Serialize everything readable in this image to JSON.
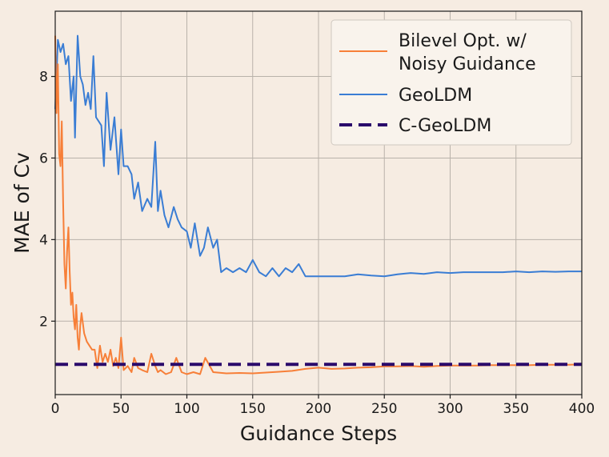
{
  "chart_data": {
    "type": "line",
    "title": "",
    "xlabel": "Guidance Steps",
    "ylabel": "MAE of Cv",
    "xlim": [
      0,
      400
    ],
    "ylim": [
      0.2,
      9.6
    ],
    "xticks": [
      0,
      50,
      100,
      150,
      200,
      250,
      300,
      350,
      400
    ],
    "yticks": [
      2,
      4,
      6,
      8
    ],
    "grid": true,
    "legend_position": "top-right",
    "colors": {
      "background": "#f6ece2",
      "plot_area": "#f6ece2",
      "grid": "#b9b2aa"
    },
    "series": [
      {
        "name": "Bilevel Opt. w/ Noisy Guidance",
        "legend_lines": [
          "Bilevel Opt. w/",
          "Noisy Guidance"
        ],
        "color": "#f77f38",
        "style": "solid",
        "x": [
          0,
          1,
          2,
          3,
          4,
          5,
          6,
          7,
          8,
          9,
          10,
          11,
          12,
          13,
          14,
          15,
          16,
          17,
          18,
          19,
          20,
          22,
          24,
          26,
          28,
          30,
          32,
          34,
          36,
          38,
          40,
          42,
          44,
          46,
          48,
          50,
          52,
          55,
          58,
          60,
          63,
          66,
          70,
          73,
          76,
          78,
          80,
          84,
          88,
          92,
          96,
          100,
          105,
          110,
          114,
          120,
          130,
          140,
          150,
          160,
          170,
          180,
          190,
          200,
          210,
          220,
          230,
          240,
          250,
          260,
          270,
          280,
          290,
          300,
          310,
          320,
          330,
          340,
          350,
          360,
          370,
          380,
          390,
          400
        ],
        "y": [
          9.0,
          7.1,
          8.3,
          6.1,
          5.8,
          6.9,
          4.9,
          3.4,
          2.8,
          3.7,
          4.3,
          3.2,
          2.4,
          2.7,
          2.1,
          1.8,
          2.4,
          1.6,
          1.3,
          1.9,
          2.2,
          1.7,
          1.5,
          1.4,
          1.3,
          1.3,
          0.85,
          1.4,
          1.0,
          1.2,
          1.0,
          1.3,
          0.9,
          1.1,
          0.85,
          1.6,
          0.8,
          0.9,
          0.75,
          1.1,
          0.85,
          0.8,
          0.75,
          1.2,
          0.9,
          0.75,
          0.8,
          0.7,
          0.75,
          1.1,
          0.75,
          0.7,
          0.75,
          0.7,
          1.1,
          0.75,
          0.72,
          0.73,
          0.72,
          0.74,
          0.76,
          0.78,
          0.83,
          0.86,
          0.83,
          0.84,
          0.86,
          0.87,
          0.89,
          0.89,
          0.9,
          0.88,
          0.9,
          0.91,
          0.91,
          0.91,
          0.92,
          0.92,
          0.92,
          0.92,
          0.93,
          0.93,
          0.93,
          0.94
        ]
      },
      {
        "name": "GeoLDM",
        "color": "#3a7dd4",
        "style": "solid",
        "x": [
          0,
          2,
          4,
          6,
          8,
          10,
          12,
          14,
          15,
          17,
          19,
          21,
          23,
          25,
          27,
          29,
          31,
          33,
          35,
          37,
          39,
          42,
          45,
          48,
          50,
          52,
          55,
          58,
          60,
          63,
          66,
          70,
          73,
          76,
          78,
          80,
          83,
          86,
          90,
          93,
          96,
          100,
          103,
          106,
          110,
          113,
          116,
          120,
          123,
          126,
          130,
          135,
          140,
          145,
          150,
          155,
          160,
          165,
          170,
          175,
          180,
          185,
          190,
          195,
          200,
          210,
          220,
          230,
          240,
          250,
          260,
          270,
          280,
          290,
          300,
          310,
          320,
          330,
          340,
          350,
          360,
          370,
          380,
          390,
          400
        ],
        "y": [
          7.2,
          8.9,
          8.6,
          8.8,
          8.3,
          8.5,
          7.4,
          8.0,
          6.5,
          9.0,
          8.0,
          7.8,
          7.3,
          7.6,
          7.2,
          8.5,
          7.0,
          6.9,
          6.8,
          5.8,
          7.6,
          6.2,
          7.0,
          5.6,
          6.7,
          5.8,
          5.8,
          5.6,
          5.0,
          5.4,
          4.7,
          5.0,
          4.8,
          6.4,
          4.7,
          5.2,
          4.6,
          4.3,
          4.8,
          4.5,
          4.3,
          4.2,
          3.8,
          4.4,
          3.6,
          3.8,
          4.3,
          3.8,
          4.0,
          3.2,
          3.3,
          3.2,
          3.3,
          3.2,
          3.5,
          3.2,
          3.1,
          3.3,
          3.1,
          3.3,
          3.2,
          3.4,
          3.1,
          3.1,
          3.1,
          3.1,
          3.1,
          3.15,
          3.12,
          3.1,
          3.15,
          3.18,
          3.16,
          3.2,
          3.18,
          3.2,
          3.2,
          3.2,
          3.2,
          3.22,
          3.2,
          3.22,
          3.21,
          3.22,
          3.22
        ]
      },
      {
        "name": "C-GeoLDM",
        "color": "#2a0a6b",
        "style": "dashed",
        "x": [
          0,
          400
        ],
        "y": [
          0.94,
          0.94
        ]
      }
    ]
  }
}
